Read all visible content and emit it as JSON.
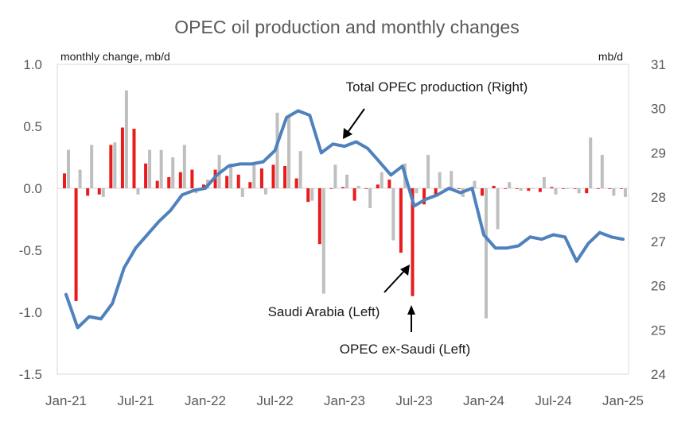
{
  "chart_data": {
    "type": "bar+line",
    "title": "OPEC oil production and monthly changes",
    "left_axis": {
      "label": "monthly change, mb/d",
      "range": [
        -1.5,
        1.0
      ],
      "ticks": [
        "1.0",
        "0.5",
        "0.0",
        "-0.5",
        "-1.0",
        "-1.5"
      ]
    },
    "right_axis": {
      "label": "mb/d",
      "range": [
        24,
        31
      ],
      "ticks": [
        "31",
        "30",
        "29",
        "28",
        "27",
        "26",
        "25",
        "24"
      ]
    },
    "x_ticks": [
      "Jan-21",
      "Jul-21",
      "Jan-22",
      "Jul-22",
      "Jan-23",
      "Jul-23",
      "Jan-24",
      "Jul-24",
      "Jan-25"
    ],
    "months": [
      "Jan-21",
      "Feb-21",
      "Mar-21",
      "Apr-21",
      "May-21",
      "Jun-21",
      "Jul-21",
      "Aug-21",
      "Sep-21",
      "Oct-21",
      "Nov-21",
      "Dec-21",
      "Jan-22",
      "Feb-22",
      "Mar-22",
      "Apr-22",
      "May-22",
      "Jun-22",
      "Jul-22",
      "Aug-22",
      "Sep-22",
      "Oct-22",
      "Nov-22",
      "Dec-22",
      "Jan-23",
      "Feb-23",
      "Mar-23",
      "Apr-23",
      "May-23",
      "Jun-23",
      "Jul-23",
      "Aug-23",
      "Sep-23",
      "Oct-23",
      "Nov-23",
      "Dec-23",
      "Jan-24",
      "Feb-24",
      "Mar-24",
      "Apr-24",
      "May-24",
      "Jun-24",
      "Jul-24",
      "Aug-24",
      "Sep-24",
      "Oct-24",
      "Nov-24",
      "Dec-24",
      "Jan-25"
    ],
    "series": [
      {
        "name": "Saudi Arabia (Left)",
        "type": "bar",
        "axis": "left",
        "color": "#e81c1c",
        "values": [
          0.12,
          -0.91,
          -0.06,
          -0.05,
          0.35,
          0.49,
          0.48,
          0.2,
          0.06,
          0.09,
          0.13,
          0.15,
          0.03,
          0.15,
          0.1,
          0.11,
          0.05,
          0.16,
          0.19,
          0.18,
          0.08,
          -0.11,
          -0.45,
          0.0,
          0.01,
          -0.1,
          0.0,
          0.03,
          0.07,
          -0.52,
          -0.87,
          -0.13,
          -0.06,
          0.0,
          0.0,
          0.0,
          -0.06,
          0.02,
          0.0,
          0.0,
          -0.02,
          -0.03,
          0.01,
          0.0,
          0.0,
          -0.04,
          0.0,
          0.0,
          0.0
        ]
      },
      {
        "name": "OPEC ex-Saudi (Left)",
        "type": "bar",
        "axis": "left",
        "color": "#bfbfbf",
        "values": [
          0.31,
          0.15,
          0.35,
          -0.07,
          0.37,
          0.79,
          -0.05,
          0.31,
          0.31,
          0.25,
          0.35,
          -0.04,
          0.07,
          0.27,
          0.2,
          -0.07,
          0.2,
          -0.05,
          0.61,
          0.59,
          0.3,
          -0.1,
          -0.85,
          0.19,
          0.11,
          0.02,
          -0.16,
          0.13,
          -0.42,
          0.2,
          -0.04,
          0.27,
          0.13,
          0.14,
          -0.07,
          0.06,
          -1.05,
          -0.33,
          0.05,
          -0.02,
          0.0,
          0.09,
          -0.05,
          0.0,
          -0.04,
          0.41,
          0.27,
          -0.06,
          -0.07
        ]
      },
      {
        "name": "Total OPEC production (Right)",
        "type": "line",
        "axis": "right",
        "color": "#4f81bd",
        "values": [
          25.8,
          25.05,
          25.3,
          25.25,
          25.6,
          26.4,
          26.85,
          27.15,
          27.45,
          27.7,
          28.05,
          28.15,
          28.2,
          28.5,
          28.7,
          28.75,
          28.75,
          28.8,
          29.05,
          29.8,
          29.95,
          29.85,
          29.0,
          29.2,
          29.15,
          29.25,
          29.1,
          28.8,
          28.5,
          28.7,
          27.8,
          27.95,
          28.05,
          28.2,
          28.1,
          28.2,
          27.15,
          26.85,
          26.85,
          26.9,
          27.1,
          27.05,
          27.15,
          27.1,
          26.55,
          26.95,
          27.2,
          27.1,
          27.05
        ]
      }
    ],
    "annotations": [
      {
        "text": "Total OPEC production (Right)",
        "target": "Total OPEC production (Right)"
      },
      {
        "text": "Saudi Arabia (Left)",
        "target": "Saudi Arabia (Left)"
      },
      {
        "text": "OPEC ex-Saudi (Left)",
        "target": "OPEC ex-Saudi (Left)"
      }
    ],
    "grid": false
  }
}
